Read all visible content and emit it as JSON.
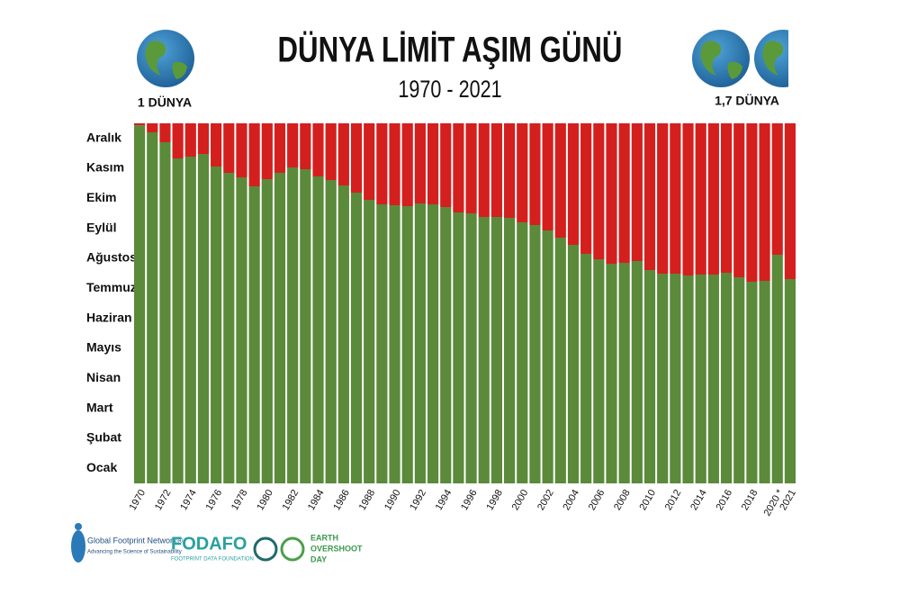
{
  "chart_data": {
    "type": "bar",
    "title": "DÜNYA LİMİT AŞIM GÜNÜ",
    "subtitle": "1970 - 2021",
    "left_label": "1 DÜNYA",
    "right_label": "1,7 DÜNYA",
    "color": "#5a8a3a",
    "overshoot_color": "#d41f1f",
    "categories": [
      "1970",
      null,
      "1972",
      null,
      "1974",
      null,
      "1976",
      null,
      "1978",
      null,
      "1980",
      null,
      "1982",
      null,
      "1984",
      null,
      "1986",
      null,
      "1988",
      null,
      "1990",
      null,
      "1992",
      null,
      "1994",
      null,
      "1996",
      null,
      "1998",
      null,
      "2000",
      null,
      "2002",
      null,
      "2004",
      null,
      "2006",
      null,
      "2008",
      null,
      "2010",
      null,
      "2012",
      null,
      "2014",
      null,
      "2016",
      null,
      "2018",
      null,
      "2020 *",
      "2021"
    ],
    "values": [
      11.93,
      11.7,
      11.37,
      10.83,
      10.89,
      10.98,
      10.56,
      10.35,
      10.2,
      9.9,
      10.14,
      10.35,
      10.53,
      10.47,
      10.23,
      10.11,
      9.93,
      9.69,
      9.45,
      9.3,
      9.27,
      9.24,
      9.33,
      9.3,
      9.21,
      9.03,
      9.0,
      8.88,
      8.88,
      8.85,
      8.7,
      8.61,
      8.43,
      8.19,
      7.95,
      7.65,
      7.47,
      7.32,
      7.35,
      7.41,
      7.11,
      6.99,
      6.99,
      6.93,
      6.96,
      6.96,
      7.02,
      6.87,
      6.72,
      6.75,
      7.62,
      6.81
    ],
    "ylim": [
      0,
      12
    ],
    "yticks": [
      {
        "value": 0.5,
        "label": "Ocak"
      },
      {
        "value": 1.5,
        "label": "Şubat"
      },
      {
        "value": 2.5,
        "label": "Mart"
      },
      {
        "value": 3.5,
        "label": "Nisan"
      },
      {
        "value": 4.5,
        "label": "Mayıs"
      },
      {
        "value": 5.5,
        "label": "Haziran"
      },
      {
        "value": 6.5,
        "label": "Temmuz"
      },
      {
        "value": 7.5,
        "label": "Ağustos"
      },
      {
        "value": 8.5,
        "label": "Eylül"
      },
      {
        "value": 9.5,
        "label": "Ekim"
      },
      {
        "value": 10.5,
        "label": "Kasım"
      },
      {
        "value": 11.5,
        "label": "Aralık"
      }
    ],
    "logos": [
      "Global Footprint Network®",
      "Advancing the Science of Sustainability",
      "FODAFO",
      "FOOTPRINT DATA FOUNDATION",
      "EARTH",
      "OVERSHOOT",
      "DAY"
    ]
  }
}
